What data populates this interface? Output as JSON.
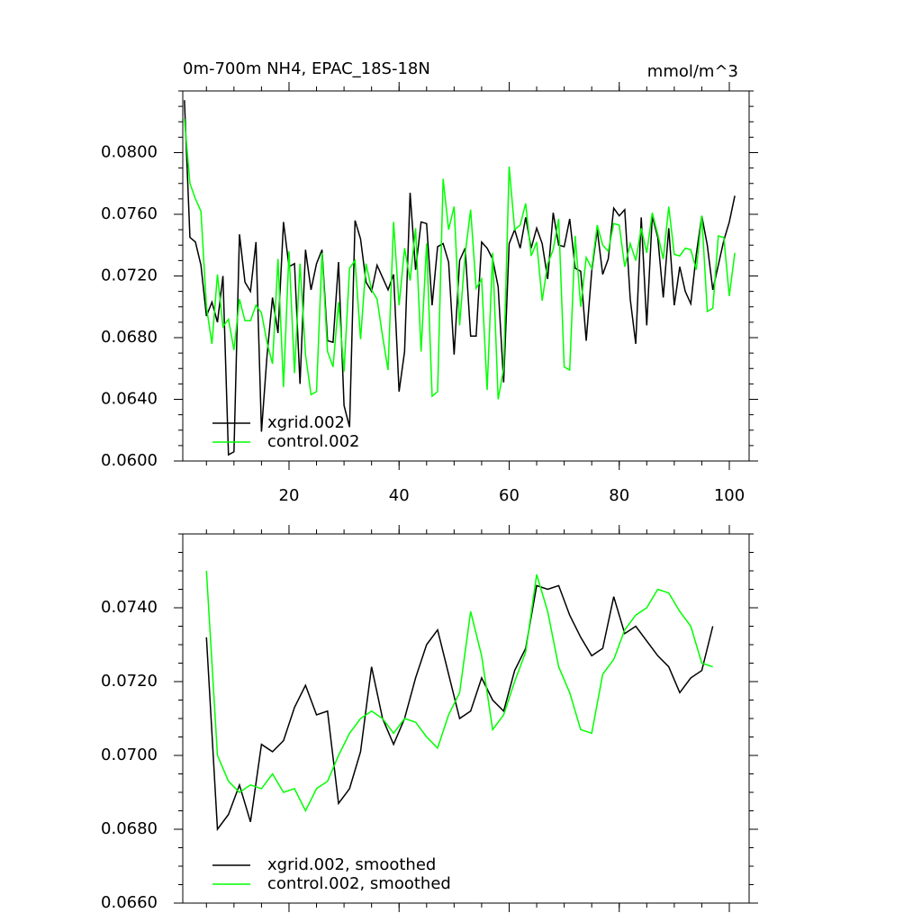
{
  "chart_data": [
    {
      "type": "line",
      "title": "0m-700m NH4, EPAC_18S-18N",
      "units": "mmol/m^3",
      "x": [
        1,
        2,
        3,
        4,
        5,
        6,
        7,
        8,
        9,
        10,
        11,
        12,
        13,
        14,
        15,
        16,
        17,
        18,
        19,
        20,
        21,
        22,
        23,
        24,
        25,
        26,
        27,
        28,
        29,
        30,
        31,
        32,
        33,
        34,
        35,
        36,
        37,
        38,
        39,
        40,
        41,
        42,
        43,
        44,
        45,
        46,
        47,
        48,
        49,
        50,
        51,
        52,
        53,
        54,
        55,
        56,
        57,
        58,
        59,
        60,
        61,
        62,
        63,
        64,
        65,
        66,
        67,
        68,
        69,
        70,
        71,
        72,
        73,
        74,
        75,
        76,
        77,
        78,
        79,
        80,
        81,
        82,
        83,
        84,
        85,
        86,
        87,
        88,
        89,
        90,
        91,
        92,
        93,
        94,
        95,
        96,
        97,
        98,
        99,
        100,
        101
      ],
      "series": [
        {
          "name": "xgrid.002",
          "color": "#000000",
          "values": [
            0.0834,
            0.0745,
            0.0742,
            0.0727,
            0.0694,
            0.0703,
            0.069,
            0.072,
            0.0604,
            0.0606,
            0.0747,
            0.0716,
            0.071,
            0.0742,
            0.0619,
            0.0668,
            0.0706,
            0.0683,
            0.0755,
            0.0726,
            0.0728,
            0.065,
            0.0737,
            0.0711,
            0.0728,
            0.0737,
            0.0678,
            0.0677,
            0.0729,
            0.0636,
            0.0622,
            0.0756,
            0.0744,
            0.0716,
            0.071,
            0.0727,
            0.0719,
            0.0711,
            0.0721,
            0.0645,
            0.0671,
            0.0774,
            0.0724,
            0.0755,
            0.0754,
            0.0701,
            0.0739,
            0.0741,
            0.0729,
            0.0669,
            0.073,
            0.0738,
            0.0681,
            0.0681,
            0.0742,
            0.0738,
            0.0731,
            0.0713,
            0.0651,
            0.0741,
            0.075,
            0.0738,
            0.0758,
            0.0738,
            0.0751,
            0.0741,
            0.0718,
            0.0761,
            0.074,
            0.0739,
            0.0757,
            0.0725,
            0.0723,
            0.0678,
            0.0723,
            0.075,
            0.0721,
            0.0731,
            0.0764,
            0.0759,
            0.0763,
            0.0705,
            0.0676,
            0.0758,
            0.0688,
            0.0759,
            0.0745,
            0.0706,
            0.0751,
            0.0701,
            0.0726,
            0.071,
            0.0702,
            0.0734,
            0.0759,
            0.074,
            0.0711,
            0.0727,
            0.0743,
            0.0755,
            0.0772
          ]
        },
        {
          "name": "control.002",
          "color": "#00ff00",
          "values": [
            0.0822,
            0.078,
            0.077,
            0.0762,
            0.07,
            0.0676,
            0.0721,
            0.0687,
            0.0692,
            0.0672,
            0.0705,
            0.0691,
            0.0691,
            0.0701,
            0.0696,
            0.0677,
            0.0663,
            0.0731,
            0.0648,
            0.0736,
            0.0657,
            0.0728,
            0.0669,
            0.0643,
            0.0645,
            0.0735,
            0.0671,
            0.0661,
            0.0703,
            0.0658,
            0.0725,
            0.073,
            0.0679,
            0.0728,
            0.0711,
            0.0705,
            0.0681,
            0.0659,
            0.0755,
            0.0701,
            0.0738,
            0.0717,
            0.0751,
            0.0671,
            0.0741,
            0.0642,
            0.0645,
            0.0783,
            0.075,
            0.0765,
            0.0688,
            0.0734,
            0.0763,
            0.0712,
            0.0718,
            0.0646,
            0.0735,
            0.064,
            0.066,
            0.0791,
            0.075,
            0.0753,
            0.0767,
            0.0733,
            0.0742,
            0.0704,
            0.0728,
            0.0737,
            0.0757,
            0.0661,
            0.0659,
            0.0746,
            0.07,
            0.0732,
            0.0725,
            0.0753,
            0.074,
            0.0736,
            0.0754,
            0.0753,
            0.0726,
            0.0741,
            0.073,
            0.0751,
            0.0735,
            0.0761,
            0.0747,
            0.0731,
            0.0765,
            0.0734,
            0.0733,
            0.0738,
            0.0737,
            0.0724,
            0.0759,
            0.0697,
            0.0699,
            0.0746,
            0.0745,
            0.0707,
            0.0735
          ]
        }
      ],
      "xlim": [
        0.7,
        103.6
      ],
      "xticks": [
        20,
        40,
        60,
        80,
        100
      ],
      "ylim": [
        0.06,
        0.084
      ],
      "yticks": [
        {
          "value": 0.06,
          "label": "0.0600"
        },
        {
          "value": 0.064,
          "label": "0.0640"
        },
        {
          "value": 0.068,
          "label": "0.0680"
        },
        {
          "value": 0.072,
          "label": "0.0720"
        },
        {
          "value": 0.076,
          "label": "0.0760"
        },
        {
          "value": 0.08,
          "label": "0.0800"
        }
      ],
      "legend": "lower left"
    },
    {
      "type": "line",
      "x": [
        5,
        7,
        9,
        11,
        13,
        15,
        17,
        19,
        21,
        23,
        25,
        27,
        29,
        31,
        33,
        35,
        37,
        39,
        41,
        43,
        45,
        47,
        49,
        51,
        53,
        55,
        57,
        59,
        61,
        63,
        65,
        67,
        69,
        71,
        73,
        75,
        77,
        79,
        81,
        83,
        85,
        87,
        89,
        91,
        93,
        95,
        97
      ],
      "series": [
        {
          "name": "xgrid.002, smoothed",
          "color": "#000000",
          "values": [
            0.0732,
            0.068,
            0.0684,
            0.0692,
            0.0682,
            0.0703,
            0.0701,
            0.0704,
            0.0713,
            0.0719,
            0.0711,
            0.0712,
            0.0687,
            0.0691,
            0.0701,
            0.0724,
            0.071,
            0.0703,
            0.071,
            0.0721,
            0.073,
            0.0734,
            0.0722,
            0.071,
            0.0712,
            0.0721,
            0.0715,
            0.0712,
            0.0723,
            0.0729,
            0.0746,
            0.0745,
            0.0746,
            0.0738,
            0.0732,
            0.0727,
            0.0729,
            0.0743,
            0.0733,
            0.0735,
            0.0731,
            0.0727,
            0.0724,
            0.0717,
            0.0721,
            0.0723,
            0.0735
          ]
        },
        {
          "name": "control.002, smoothed",
          "color": "#00ff00",
          "values": [
            0.075,
            0.07,
            0.0693,
            0.069,
            0.0692,
            0.0691,
            0.0695,
            0.069,
            0.0691,
            0.0685,
            0.0691,
            0.0693,
            0.07,
            0.0706,
            0.071,
            0.0712,
            0.071,
            0.0706,
            0.071,
            0.0709,
            0.0705,
            0.0702,
            0.0711,
            0.0717,
            0.0739,
            0.0727,
            0.0707,
            0.0711,
            0.072,
            0.0728,
            0.0749,
            0.0739,
            0.0724,
            0.0717,
            0.0707,
            0.0706,
            0.0722,
            0.0726,
            0.0734,
            0.0738,
            0.074,
            0.0745,
            0.0744,
            0.0739,
            0.0735,
            0.0725,
            0.0724
          ]
        }
      ],
      "xlim": [
        0.7,
        103.6
      ],
      "ylim": [
        0.066,
        0.076
      ],
      "yticks": [
        {
          "value": 0.066,
          "label": "0.0660"
        },
        {
          "value": 0.068,
          "label": "0.0680"
        },
        {
          "value": 0.07,
          "label": "0.0700"
        },
        {
          "value": 0.072,
          "label": "0.0720"
        },
        {
          "value": 0.074,
          "label": "0.0740"
        }
      ],
      "legend": "lower left"
    }
  ]
}
